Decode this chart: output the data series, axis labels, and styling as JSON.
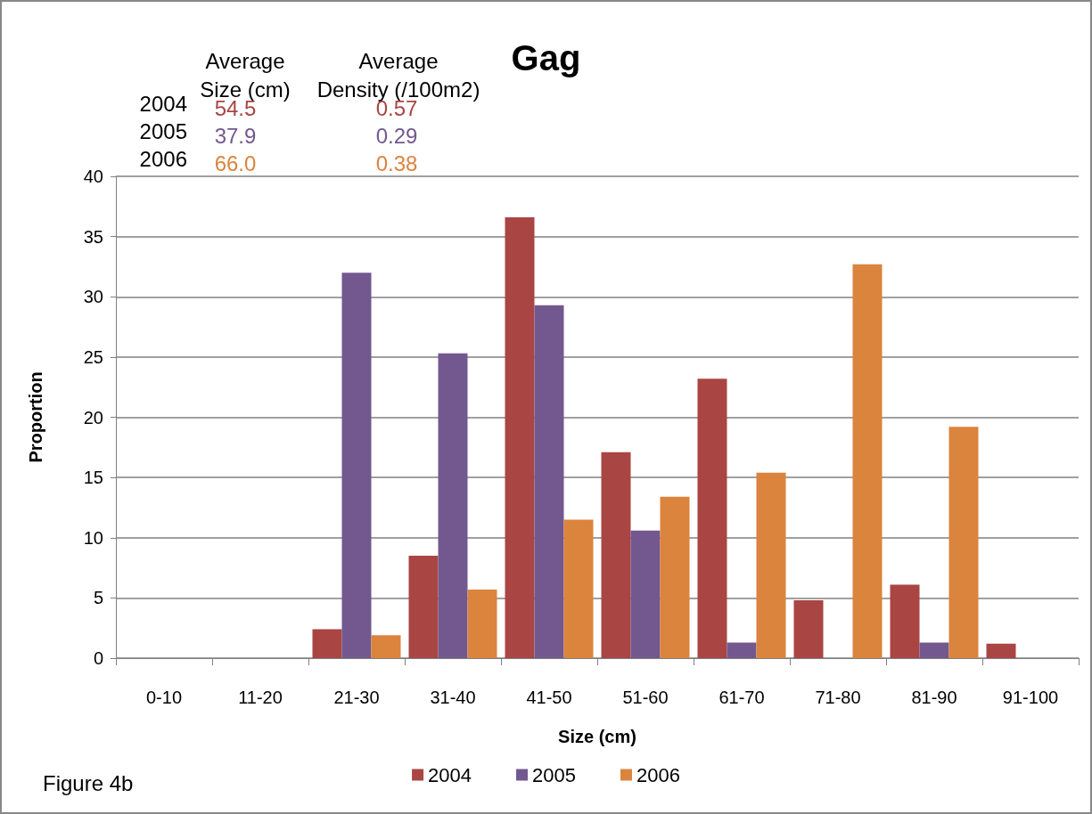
{
  "chart_data": {
    "type": "bar",
    "title": "Gag",
    "xlabel": "Size (cm)",
    "ylabel": "Proportion",
    "categories": [
      "0-10",
      "11-20",
      "21-30",
      "31-40",
      "41-50",
      "51-60",
      "61-70",
      "71-80",
      "81-90",
      "91-100"
    ],
    "series": [
      {
        "name": "2004",
        "color": "#a94543",
        "values": [
          0,
          0,
          2.4,
          8.5,
          36.6,
          17.1,
          23.2,
          4.8,
          6.1,
          1.2
        ]
      },
      {
        "name": "2005",
        "color": "#72588f",
        "values": [
          0,
          0,
          32.0,
          25.3,
          29.3,
          10.6,
          1.3,
          0,
          1.3,
          0
        ]
      },
      {
        "name": "2006",
        "color": "#db843d",
        "values": [
          0,
          0,
          1.9,
          5.7,
          11.5,
          13.4,
          15.4,
          32.7,
          19.2,
          0
        ]
      }
    ],
    "ylim": [
      0,
      40
    ],
    "yticks": [
      0,
      5,
      10,
      15,
      20,
      25,
      30,
      35,
      40
    ],
    "grid": "y",
    "legend": "bottom",
    "annotations": [
      "Average Size (cm)",
      "Average Density (/100m2)",
      "2004",
      "54.5",
      "0.57",
      "2005",
      "37.9",
      "0.29",
      "2006",
      "66.0",
      "0.38",
      "Figure 4b"
    ]
  }
}
